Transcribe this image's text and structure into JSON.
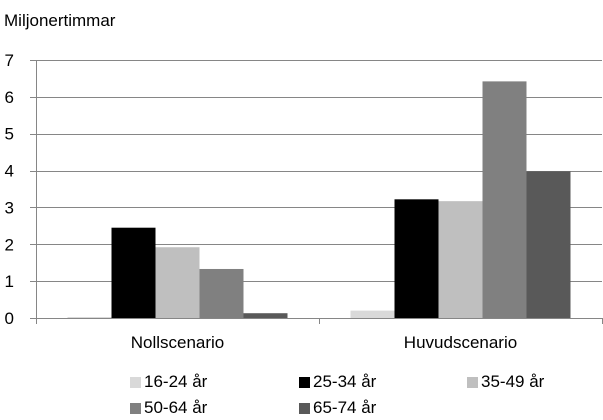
{
  "chart_data": {
    "type": "bar",
    "ylabel": "Miljonertimmar",
    "categories": [
      "Nollscenario",
      "Huvudscenario"
    ],
    "ylim": [
      0,
      7
    ],
    "yticks": [
      0,
      1,
      2,
      3,
      4,
      5,
      6,
      7
    ],
    "grid": true,
    "legend_position": "bottom",
    "series": [
      {
        "name": "16-24 år",
        "color": "#d9d9d9",
        "values": [
          0.02,
          0.2
        ]
      },
      {
        "name": "25-34 år",
        "color": "#000000",
        "values": [
          2.45,
          3.22
        ]
      },
      {
        "name": "35-49 år",
        "color": "#bfbfbf",
        "values": [
          1.92,
          3.17
        ]
      },
      {
        "name": "50-64 år",
        "color": "#808080",
        "values": [
          1.33,
          6.42
        ]
      },
      {
        "name": "65-74 år",
        "color": "#595959",
        "values": [
          0.13,
          3.98
        ]
      }
    ]
  }
}
